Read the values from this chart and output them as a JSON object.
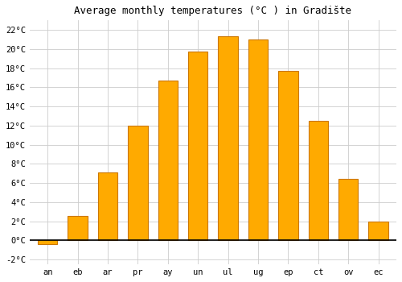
{
  "title": "Average monthly temperatures (°C ) in Gradište",
  "months": [
    "an",
    "eb",
    "ar",
    "pr",
    "ay",
    "un",
    "ul",
    "ug",
    "ep",
    "ct",
    "ov",
    "ec"
  ],
  "values": [
    -0.4,
    2.6,
    7.1,
    12.0,
    16.7,
    19.7,
    21.3,
    21.0,
    17.7,
    12.5,
    6.4,
    2.0
  ],
  "bar_color": "#FFAA00",
  "bar_edge_color": "#CC7700",
  "ylim": [
    -2.5,
    23
  ],
  "yticks": [
    -2,
    0,
    2,
    4,
    6,
    8,
    10,
    12,
    14,
    16,
    18,
    20,
    22
  ],
  "ytick_labels": [
    "-2°C",
    "0°C",
    "2°C",
    "4°C",
    "6°C",
    "8°C",
    "10°C",
    "12°C",
    "14°C",
    "16°C",
    "18°C",
    "20°C",
    "22°C"
  ],
  "grid_color": "#cccccc",
  "background_color": "#ffffff",
  "title_fontsize": 9,
  "tick_fontsize": 7.5,
  "bar_width": 0.65
}
